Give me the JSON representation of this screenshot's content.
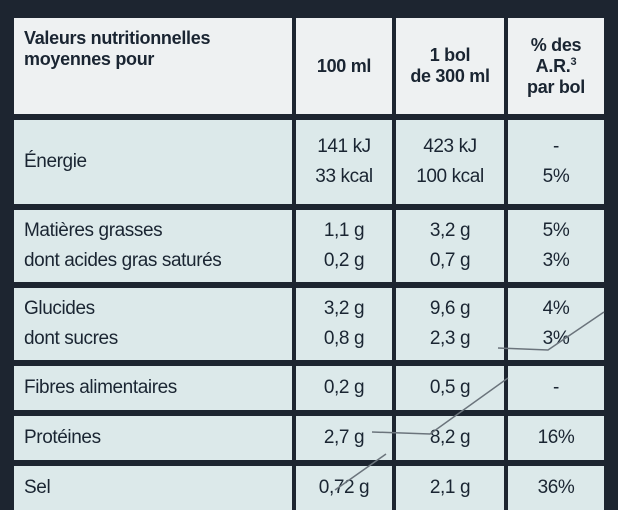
{
  "header": {
    "label": "Valeurs nutritionnelles moyennes pour",
    "col_100ml": "100 ml",
    "col_bol_line1": "1 bol",
    "col_bol_line2": "de 300 ml",
    "col_ar_line1": "% des",
    "col_ar_line2": "A.R.",
    "col_ar_sup": "3",
    "col_ar_line3": "par bol"
  },
  "rows": [
    {
      "label": "Énergie",
      "sub_label": "",
      "v100": "141 kJ",
      "v100_b": "33 kcal",
      "vbol": "423 kJ",
      "vbol_b": "100 kcal",
      "ar": "-",
      "ar_b": "5%"
    },
    {
      "label": "Matières grasses",
      "sub_label": "dont acides gras saturés",
      "v100": "1,1 g",
      "v100_b": "0,2 g",
      "vbol": "3,2 g",
      "vbol_b": "0,7 g",
      "ar": "5%",
      "ar_b": "3%"
    },
    {
      "label": "Glucides",
      "sub_label": "dont sucres",
      "v100": "3,2 g",
      "v100_b": "0,8 g",
      "vbol": "9,6 g",
      "vbol_b": "2,3 g",
      "ar": "4%",
      "ar_b": "3%"
    },
    {
      "label": "Fibres alimentaires",
      "v100": "0,2 g",
      "vbol": "0,5 g",
      "ar": "-"
    },
    {
      "label": "Protéines",
      "v100": "2,7 g",
      "vbol": "8,2 g",
      "ar": "16%"
    },
    {
      "label": "Sel",
      "v100": "0,72 g",
      "vbol": "2,1 g",
      "ar": "36%"
    }
  ]
}
